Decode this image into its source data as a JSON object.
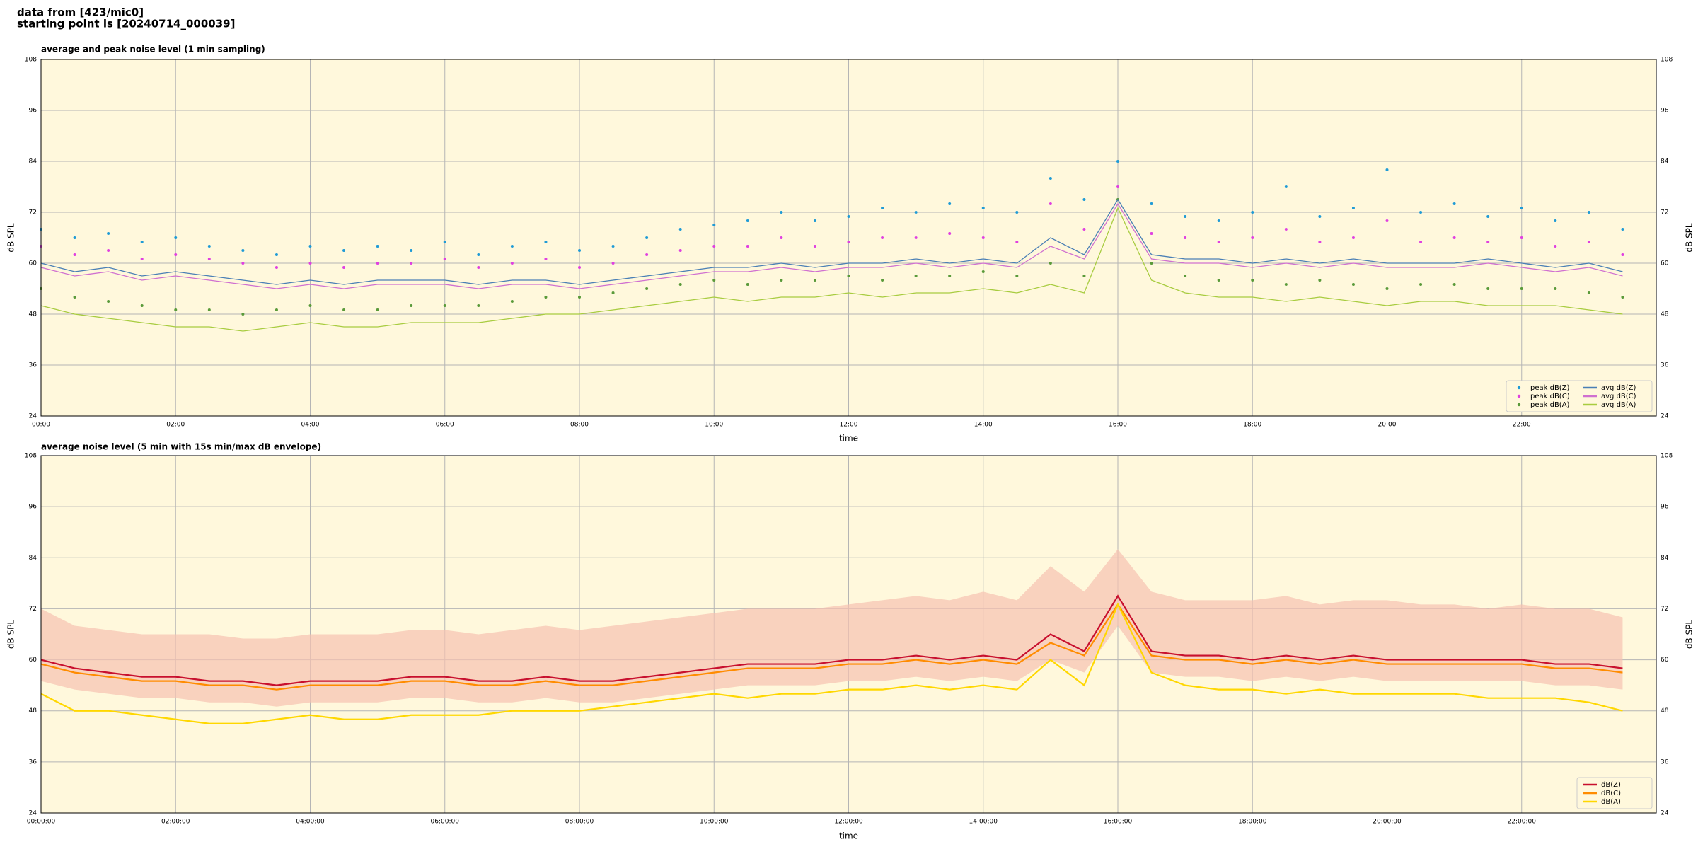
{
  "header": {
    "source": "data from [423/mic0]",
    "start": "starting point is [20240714_000039]"
  },
  "chart_data": [
    {
      "type": "line",
      "title": "average and peak noise level (1 min sampling)",
      "xlabel": "time",
      "ylabel": "dB SPL",
      "x": [
        0,
        0.5,
        1,
        1.5,
        2,
        2.5,
        3,
        3.5,
        4,
        4.5,
        5,
        5.5,
        6,
        6.5,
        7,
        7.5,
        8,
        8.5,
        9,
        9.5,
        10,
        10.5,
        11,
        11.5,
        12,
        12.5,
        13,
        13.5,
        14,
        14.5,
        15,
        15.5,
        16,
        16.5,
        17,
        17.5,
        18,
        18.5,
        19,
        19.5,
        20,
        20.5,
        21,
        21.5,
        22,
        22.5,
        23,
        23.5
      ],
      "xlim": [
        0,
        24
      ],
      "xticks": [
        {
          "value": 0,
          "label": "00:00"
        },
        {
          "value": 2,
          "label": "02:00"
        },
        {
          "value": 4,
          "label": "04:00"
        },
        {
          "value": 6,
          "label": "06:00"
        },
        {
          "value": 8,
          "label": "08:00"
        },
        {
          "value": 10,
          "label": "10:00"
        },
        {
          "value": 12,
          "label": "12:00"
        },
        {
          "value": 14,
          "label": "14:00"
        },
        {
          "value": 16,
          "label": "16:00"
        },
        {
          "value": 18,
          "label": "18:00"
        },
        {
          "value": 20,
          "label": "20:00"
        },
        {
          "value": 22,
          "label": "22:00"
        }
      ],
      "ylim": [
        24,
        108
      ],
      "yticks": [
        24,
        36,
        48,
        60,
        72,
        84,
        96,
        108
      ],
      "grid": true,
      "legend": "lower right",
      "legend_columns": 2,
      "series": [
        {
          "name": "peak dB(Z)",
          "type": "scatter",
          "color": "#1f9bd6",
          "values": [
            68,
            66,
            67,
            65,
            66,
            64,
            63,
            62,
            64,
            63,
            64,
            63,
            65,
            62,
            64,
            65,
            63,
            64,
            66,
            68,
            69,
            70,
            72,
            70,
            71,
            73,
            72,
            74,
            73,
            72,
            80,
            75,
            84,
            74,
            71,
            70,
            72,
            78,
            71,
            73,
            82,
            72,
            74,
            71,
            73,
            70,
            72,
            68
          ]
        },
        {
          "name": "peak dB(C)",
          "type": "scatter",
          "color": "#e040e0",
          "values": [
            64,
            62,
            63,
            61,
            62,
            61,
            60,
            59,
            60,
            59,
            60,
            60,
            61,
            59,
            60,
            61,
            59,
            60,
            62,
            63,
            64,
            64,
            66,
            64,
            65,
            66,
            66,
            67,
            66,
            65,
            74,
            68,
            78,
            67,
            66,
            65,
            66,
            68,
            65,
            66,
            70,
            65,
            66,
            65,
            66,
            64,
            65,
            62
          ]
        },
        {
          "name": "peak dB(A)",
          "type": "scatter",
          "color": "#5a9a3a",
          "values": [
            54,
            52,
            51,
            50,
            49,
            49,
            48,
            49,
            50,
            49,
            49,
            50,
            50,
            50,
            51,
            52,
            52,
            53,
            54,
            55,
            56,
            55,
            56,
            56,
            57,
            56,
            57,
            57,
            58,
            57,
            60,
            57,
            75,
            60,
            57,
            56,
            56,
            55,
            56,
            55,
            54,
            55,
            55,
            54,
            54,
            54,
            53,
            52
          ]
        },
        {
          "name": "avg dB(Z)",
          "type": "line",
          "color": "#4a7fb5",
          "values": [
            60,
            58,
            59,
            57,
            58,
            57,
            56,
            55,
            56,
            55,
            56,
            56,
            56,
            55,
            56,
            56,
            55,
            56,
            57,
            58,
            59,
            59,
            60,
            59,
            60,
            60,
            61,
            60,
            61,
            60,
            66,
            62,
            75,
            62,
            61,
            61,
            60,
            61,
            60,
            61,
            60,
            60,
            60,
            61,
            60,
            59,
            60,
            58
          ]
        },
        {
          "name": "avg dB(C)",
          "type": "line",
          "color": "#d070d0",
          "values": [
            59,
            57,
            58,
            56,
            57,
            56,
            55,
            54,
            55,
            54,
            55,
            55,
            55,
            54,
            55,
            55,
            54,
            55,
            56,
            57,
            58,
            58,
            59,
            58,
            59,
            59,
            60,
            59,
            60,
            59,
            64,
            61,
            74,
            61,
            60,
            60,
            59,
            60,
            59,
            60,
            59,
            59,
            59,
            60,
            59,
            58,
            59,
            57
          ]
        },
        {
          "name": "avg dB(A)",
          "type": "line",
          "color": "#a8cc40",
          "values": [
            50,
            48,
            47,
            46,
            45,
            45,
            44,
            45,
            46,
            45,
            45,
            46,
            46,
            46,
            47,
            48,
            48,
            49,
            50,
            51,
            52,
            51,
            52,
            52,
            53,
            52,
            53,
            53,
            54,
            53,
            55,
            53,
            73,
            56,
            53,
            52,
            52,
            51,
            52,
            51,
            50,
            51,
            51,
            50,
            50,
            50,
            49,
            48
          ]
        }
      ]
    },
    {
      "type": "line",
      "title": "average noise level (5 min with 15s min/max dB envelope)",
      "xlabel": "time",
      "ylabel": "dB SPL",
      "x": [
        0,
        0.5,
        1,
        1.5,
        2,
        2.5,
        3,
        3.5,
        4,
        4.5,
        5,
        5.5,
        6,
        6.5,
        7,
        7.5,
        8,
        8.5,
        9,
        9.5,
        10,
        10.5,
        11,
        11.5,
        12,
        12.5,
        13,
        13.5,
        14,
        14.5,
        15,
        15.5,
        16,
        16.5,
        17,
        17.5,
        18,
        18.5,
        19,
        19.5,
        20,
        20.5,
        21,
        21.5,
        22,
        22.5,
        23,
        23.5
      ],
      "xlim": [
        0,
        24
      ],
      "xticks": [
        {
          "value": 0,
          "label": "00:00:00"
        },
        {
          "value": 2,
          "label": "02:00:00"
        },
        {
          "value": 4,
          "label": "04:00:00"
        },
        {
          "value": 6,
          "label": "06:00:00"
        },
        {
          "value": 8,
          "label": "08:00:00"
        },
        {
          "value": 10,
          "label": "10:00:00"
        },
        {
          "value": 12,
          "label": "12:00:00"
        },
        {
          "value": 14,
          "label": "14:00:00"
        },
        {
          "value": 16,
          "label": "16:00:00"
        },
        {
          "value": 18,
          "label": "18:00:00"
        },
        {
          "value": 20,
          "label": "20:00:00"
        },
        {
          "value": 22,
          "label": "22:00:00"
        }
      ],
      "ylim": [
        24,
        108
      ],
      "yticks": [
        24,
        36,
        48,
        60,
        72,
        84,
        96,
        108
      ],
      "grid": true,
      "legend": "lower right",
      "legend_columns": 1,
      "envelope": {
        "color": "#f7c2b0",
        "lower": [
          55,
          53,
          52,
          51,
          51,
          50,
          50,
          49,
          50,
          50,
          50,
          51,
          51,
          50,
          50,
          51,
          50,
          50,
          51,
          52,
          53,
          54,
          54,
          54,
          55,
          55,
          56,
          55,
          56,
          55,
          60,
          57,
          68,
          57,
          56,
          56,
          55,
          56,
          55,
          56,
          55,
          55,
          55,
          55,
          55,
          54,
          54,
          53
        ],
        "upper": [
          72,
          68,
          67,
          66,
          66,
          66,
          65,
          65,
          66,
          66,
          66,
          67,
          67,
          66,
          67,
          68,
          67,
          68,
          69,
          70,
          71,
          72,
          72,
          72,
          73,
          74,
          75,
          74,
          76,
          74,
          82,
          76,
          86,
          76,
          74,
          74,
          74,
          75,
          73,
          74,
          74,
          73,
          73,
          72,
          73,
          72,
          72,
          70
        ]
      },
      "series": [
        {
          "name": "dB(Z)",
          "type": "line",
          "color": "#c8102e",
          "values": [
            60,
            58,
            57,
            56,
            56,
            55,
            55,
            54,
            55,
            55,
            55,
            56,
            56,
            55,
            55,
            56,
            55,
            55,
            56,
            57,
            58,
            59,
            59,
            59,
            60,
            60,
            61,
            60,
            61,
            60,
            66,
            62,
            75,
            62,
            61,
            61,
            60,
            61,
            60,
            61,
            60,
            60,
            60,
            60,
            60,
            59,
            59,
            58
          ]
        },
        {
          "name": "dB(C)",
          "type": "line",
          "color": "#ff8c00",
          "values": [
            59,
            57,
            56,
            55,
            55,
            54,
            54,
            53,
            54,
            54,
            54,
            55,
            55,
            54,
            54,
            55,
            54,
            54,
            55,
            56,
            57,
            58,
            58,
            58,
            59,
            59,
            60,
            59,
            60,
            59,
            64,
            61,
            73,
            61,
            60,
            60,
            59,
            60,
            59,
            60,
            59,
            59,
            59,
            59,
            59,
            58,
            58,
            57
          ]
        },
        {
          "name": "dB(A)",
          "type": "line",
          "color": "#ffd700",
          "values": [
            52,
            48,
            48,
            47,
            46,
            45,
            45,
            46,
            47,
            46,
            46,
            47,
            47,
            47,
            48,
            48,
            48,
            49,
            50,
            51,
            52,
            51,
            52,
            52,
            53,
            53,
            54,
            53,
            54,
            53,
            60,
            54,
            73,
            57,
            54,
            53,
            53,
            52,
            53,
            52,
            52,
            52,
            52,
            51,
            51,
            51,
            50,
            48
          ]
        }
      ]
    }
  ]
}
